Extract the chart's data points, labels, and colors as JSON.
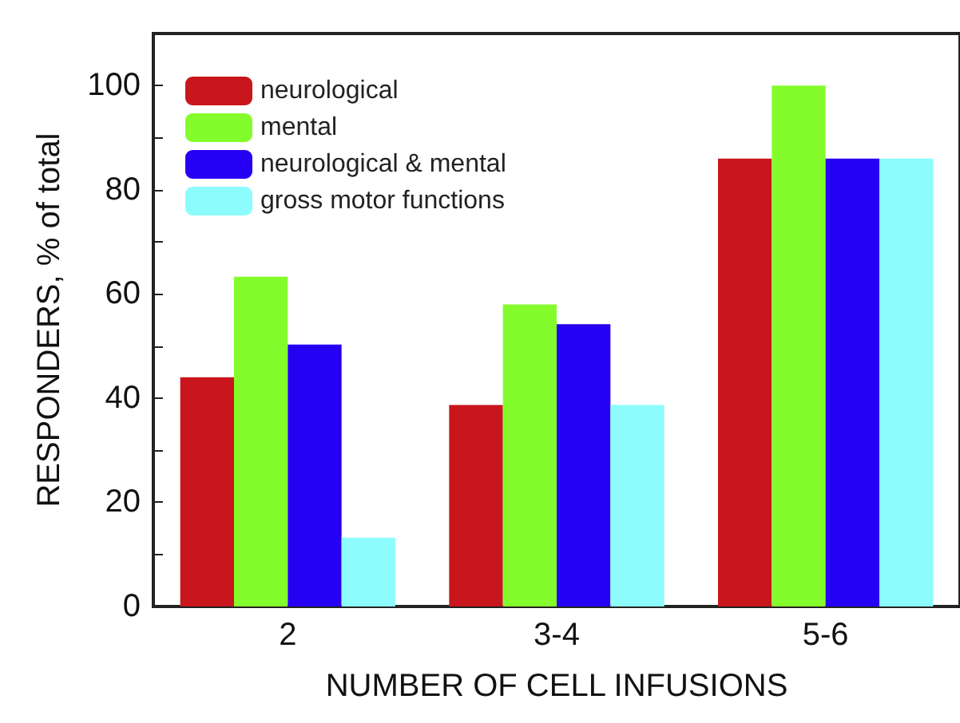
{
  "chart_data": {
    "type": "bar",
    "xlabel": "NUMBER OF CELL INFUSIONS",
    "ylabel": "RESPONDERS, % of total",
    "categories": [
      "2",
      "3-4",
      "5-6"
    ],
    "series": [
      {
        "name": "neurological",
        "color": "#c8161c",
        "values": [
          44,
          38.7,
          86
        ]
      },
      {
        "name": "mental",
        "color": "#84fc2c",
        "values": [
          63.3,
          58,
          100
        ]
      },
      {
        "name": "neurological & mental",
        "color": "#2600f2",
        "values": [
          50.3,
          54.2,
          86
        ]
      },
      {
        "name": "gross motor functions",
        "color": "#8cfcfc",
        "values": [
          13.2,
          38.7,
          86
        ]
      }
    ],
    "ylim": [
      0,
      110
    ],
    "yticks": [
      0,
      {
        "value": 10,
        "label": null
      },
      20,
      {
        "value": 30,
        "label": null
      },
      40,
      {
        "value": 50,
        "label": null
      },
      60,
      {
        "value": 70,
        "label": null
      },
      80,
      {
        "value": 90,
        "label": null
      },
      100
    ],
    "grid": false,
    "legend": "top left"
  }
}
